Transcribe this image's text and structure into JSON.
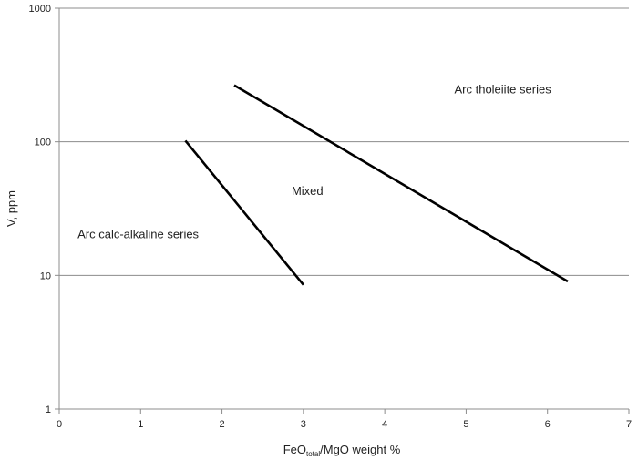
{
  "chart_data": {
    "type": "line",
    "title": "",
    "xlabel": {
      "prefix": "FeO",
      "subscript": "total",
      "suffix": "/MgO weight %"
    },
    "ylabel": "V, ppm",
    "xlim": [
      0,
      7
    ],
    "ylim": [
      1,
      1000
    ],
    "yscale": "log",
    "xticks": [
      "0",
      "1",
      "2",
      "3",
      "4",
      "5",
      "6",
      "7"
    ],
    "yticks": [
      "1",
      "10",
      "100",
      "1000"
    ],
    "grid": "horizontal",
    "legend": "none",
    "series": [
      {
        "points": [
          [
            1.55,
            102
          ],
          [
            3.0,
            8.5
          ]
        ]
      },
      {
        "points": [
          [
            2.15,
            265
          ],
          [
            6.25,
            9.0
          ]
        ]
      }
    ],
    "annotations": [
      {
        "text": "Arc tholeiite series",
        "x": 5.45,
        "y": 230
      },
      {
        "text": "Mixed",
        "x": 3.05,
        "y": 40
      },
      {
        "text": "Arc calc-alkaline series",
        "x": 0.97,
        "y": 19
      }
    ],
    "colors": {
      "line": "#000000",
      "grid": "#8c8c8c",
      "axis": "#8c8c8c"
    }
  }
}
